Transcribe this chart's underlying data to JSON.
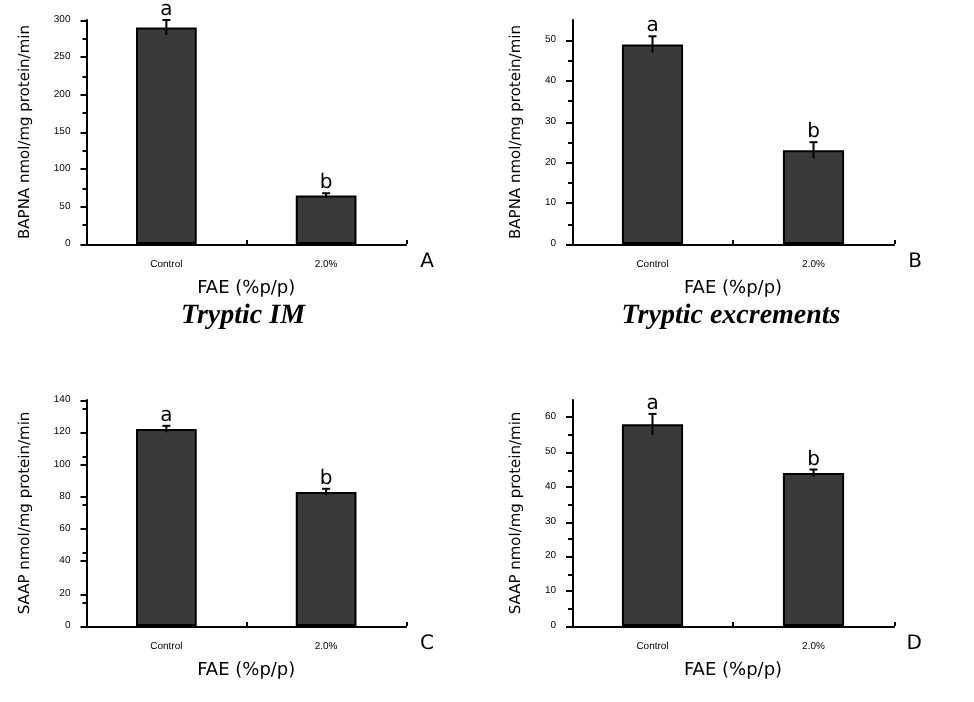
{
  "chart_data": [
    {
      "type": "bar",
      "subtitle": "Tryptic IM",
      "xlabel": "FAE (%p/p)",
      "ylabel": "BAPNA nmol/mg protein/min",
      "categories": [
        "Control",
        "2.0%"
      ],
      "values": [
        290,
        65
      ],
      "errors": [
        10,
        3
      ],
      "color": "#3a3a3a",
      "ylim": [
        0,
        300
      ],
      "yticks": [
        0,
        50,
        100,
        150,
        200,
        250,
        300
      ],
      "grid": false,
      "annotations": [
        {
          "text": "a",
          "x": "Control",
          "y": 300
        },
        {
          "text": "b",
          "x": "2.0%",
          "y": 68
        },
        "A"
      ]
    },
    {
      "type": "bar",
      "subtitle": "Tryptic excrements",
      "xlabel": "FAE (%p/p)",
      "ylabel": "BAPNA nmol/mg protein/min",
      "categories": [
        "Control",
        "2.0%"
      ],
      "values": [
        49,
        23
      ],
      "errors": [
        2,
        2
      ],
      "color": "#3a3a3a",
      "ylim": [
        0,
        55
      ],
      "yticks": [
        0,
        10,
        20,
        30,
        40,
        50
      ],
      "grid": false,
      "annotations": [
        {
          "text": "a",
          "x": "Control",
          "y": 51
        },
        {
          "text": "b",
          "x": "2.0%",
          "y": 25
        },
        "B"
      ]
    },
    {
      "type": "bar",
      "xlabel": "FAE (%p/p)",
      "ylabel": "SAAP nmol/mg protein/min",
      "categories": [
        "Control",
        "2.0%"
      ],
      "values": [
        122,
        83
      ],
      "errors": [
        2,
        2
      ],
      "color": "#3a3a3a",
      "ylim": [
        0,
        140
      ],
      "yticks": [
        0,
        20,
        40,
        60,
        80,
        100,
        120,
        140
      ],
      "grid": false,
      "annotations": [
        {
          "text": "a",
          "x": "Control",
          "y": 124
        },
        {
          "text": "b",
          "x": "2.0%",
          "y": 85
        },
        "C"
      ]
    },
    {
      "type": "bar",
      "xlabel": "FAE (%p/p)",
      "ylabel": "SAAP nmol/mg protein/min",
      "categories": [
        "Control",
        "2.0%"
      ],
      "values": [
        58,
        44
      ],
      "errors": [
        3,
        1
      ],
      "color": "#3a3a3a",
      "ylim": [
        0,
        65
      ],
      "yticks": [
        0,
        10,
        20,
        30,
        40,
        50,
        60
      ],
      "grid": false,
      "annotations": [
        {
          "text": "a",
          "x": "Control",
          "y": 61
        },
        {
          "text": "b",
          "x": "2.0%",
          "y": 45
        },
        "D"
      ]
    }
  ]
}
